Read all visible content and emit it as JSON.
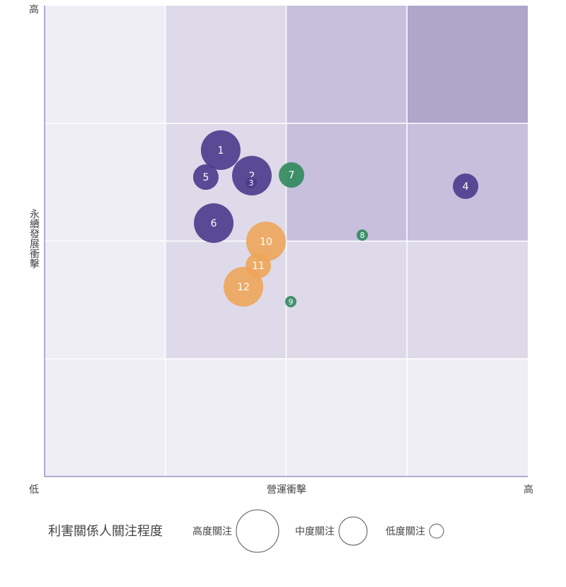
{
  "chart_data": {
    "type": "bubble",
    "x_label": "營運衝擊",
    "y_label": "永續發展衝擊",
    "x_low_label": "低",
    "x_high_label": "高",
    "y_high_label": "高",
    "xlim": [
      0,
      4
    ],
    "ylim": [
      0,
      4
    ],
    "xticks": [
      1,
      2,
      3
    ],
    "yticks": [
      1,
      2,
      3
    ],
    "grid": true,
    "zone_colors": [
      [
        "#efedf5",
        "#dedae9",
        "#c8bfdd",
        "#b0a5cb"
      ],
      [
        "#efedf5",
        "#dedae9",
        "#c8bfdd",
        "#c8bfdd"
      ],
      [
        "#efedf5",
        "#dedae9",
        "#dedae9",
        "#dedae9"
      ],
      [
        "#efedf5",
        "#efedf5",
        "#efedf5",
        "#efedf5"
      ]
    ],
    "series": [
      {
        "color": "#4b3a8c",
        "labels": [
          "1",
          "2",
          "3",
          "4",
          "5",
          "6"
        ],
        "x": [
          1.458,
          1.716,
          1.71,
          3.485,
          1.335,
          1.4
        ],
        "values": [
          2.773,
          2.556,
          2.496,
          2.466,
          2.544,
          2.153
        ],
        "sizes": [
          3,
          3,
          1,
          2,
          2,
          3
        ]
      },
      {
        "color": "#2f8a5c",
        "labels": [
          "7",
          "8",
          "9"
        ],
        "x": [
          2.044,
          2.63,
          2.038
        ],
        "values": [
          2.562,
          2.051,
          1.486
        ],
        "sizes": [
          2,
          1,
          1
        ]
      },
      {
        "color": "#eda55a",
        "labels": [
          "10",
          "11",
          "12"
        ],
        "x": [
          1.833,
          1.769,
          1.646
        ],
        "values": [
          1.997,
          1.792,
          1.612
        ],
        "sizes": [
          3,
          2,
          3
        ]
      }
    ],
    "size_legend": {
      "title": "利害關係人關注程度",
      "entries": [
        {
          "label": "高度關注",
          "size": 3
        },
        {
          "label": "中度關注",
          "size": 2
        },
        {
          "label": "低度關注",
          "size": 1
        }
      ]
    }
  }
}
